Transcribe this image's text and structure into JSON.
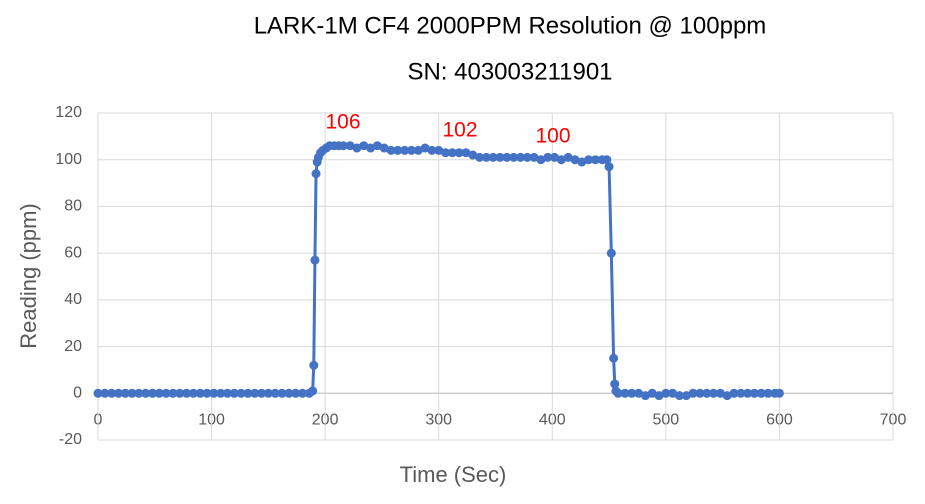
{
  "chart_data": {
    "type": "line",
    "title": "LARK-1M CF4 2000PPM Resolution @ 100ppm",
    "subtitle": "SN: 403003211901",
    "x_label": "Time (Sec)",
    "y_label": "Reading (ppm)",
    "annotations": [
      "106",
      "102",
      "100"
    ],
    "color": "#4472c4",
    "annotation_color": "#ff0000",
    "grid": true,
    "xlim": [
      0,
      700
    ],
    "xticks": [
      0,
      100,
      200,
      300,
      400,
      500,
      600,
      700
    ],
    "ylim": [
      -20,
      120
    ],
    "yticks": [
      -20,
      0,
      20,
      40,
      60,
      80,
      100,
      120
    ],
    "x": [
      0,
      6,
      12,
      18,
      24,
      30,
      36,
      42,
      48,
      54,
      60,
      66,
      72,
      78,
      84,
      90,
      96,
      102,
      108,
      114,
      120,
      126,
      132,
      138,
      144,
      150,
      156,
      162,
      168,
      174,
      180,
      186,
      189,
      190,
      191,
      192,
      193,
      194,
      196,
      198,
      201,
      204,
      208,
      212,
      216,
      222,
      228,
      234,
      240,
      246,
      252,
      258,
      264,
      270,
      276,
      282,
      288,
      294,
      300,
      306,
      312,
      318,
      324,
      330,
      336,
      342,
      348,
      354,
      360,
      366,
      372,
      378,
      384,
      390,
      396,
      402,
      408,
      414,
      420,
      426,
      432,
      438,
      444,
      448,
      450,
      452,
      454,
      455,
      456,
      458,
      464,
      470,
      476,
      482,
      488,
      494,
      500,
      506,
      512,
      518,
      524,
      530,
      536,
      542,
      548,
      554,
      560,
      566,
      572,
      578,
      584,
      590,
      596,
      600
    ],
    "values": [
      0,
      0,
      0,
      0,
      0,
      0,
      0,
      0,
      0,
      0,
      0,
      0,
      0,
      0,
      0,
      0,
      0,
      0,
      0,
      0,
      0,
      0,
      0,
      0,
      0,
      0,
      0,
      0,
      0,
      0,
      0,
      0,
      1,
      12,
      57,
      94,
      99,
      101,
      103,
      104,
      105,
      106,
      106,
      106,
      106,
      106,
      105,
      106,
      105,
      106,
      105,
      104,
      104,
      104,
      104,
      104,
      105,
      104,
      104,
      103,
      103,
      103,
      103,
      102,
      101,
      101,
      101,
      101,
      101,
      101,
      101,
      101,
      101,
      100,
      101,
      101,
      100,
      101,
      100,
      99,
      100,
      100,
      100,
      100,
      97,
      60,
      15,
      4,
      1,
      0,
      0,
      0,
      0,
      -1,
      0,
      -1,
      0,
      0,
      -1,
      -1,
      0,
      0,
      0,
      0,
      0,
      -1,
      0,
      0,
      0,
      0,
      0,
      0,
      0,
      0
    ]
  }
}
